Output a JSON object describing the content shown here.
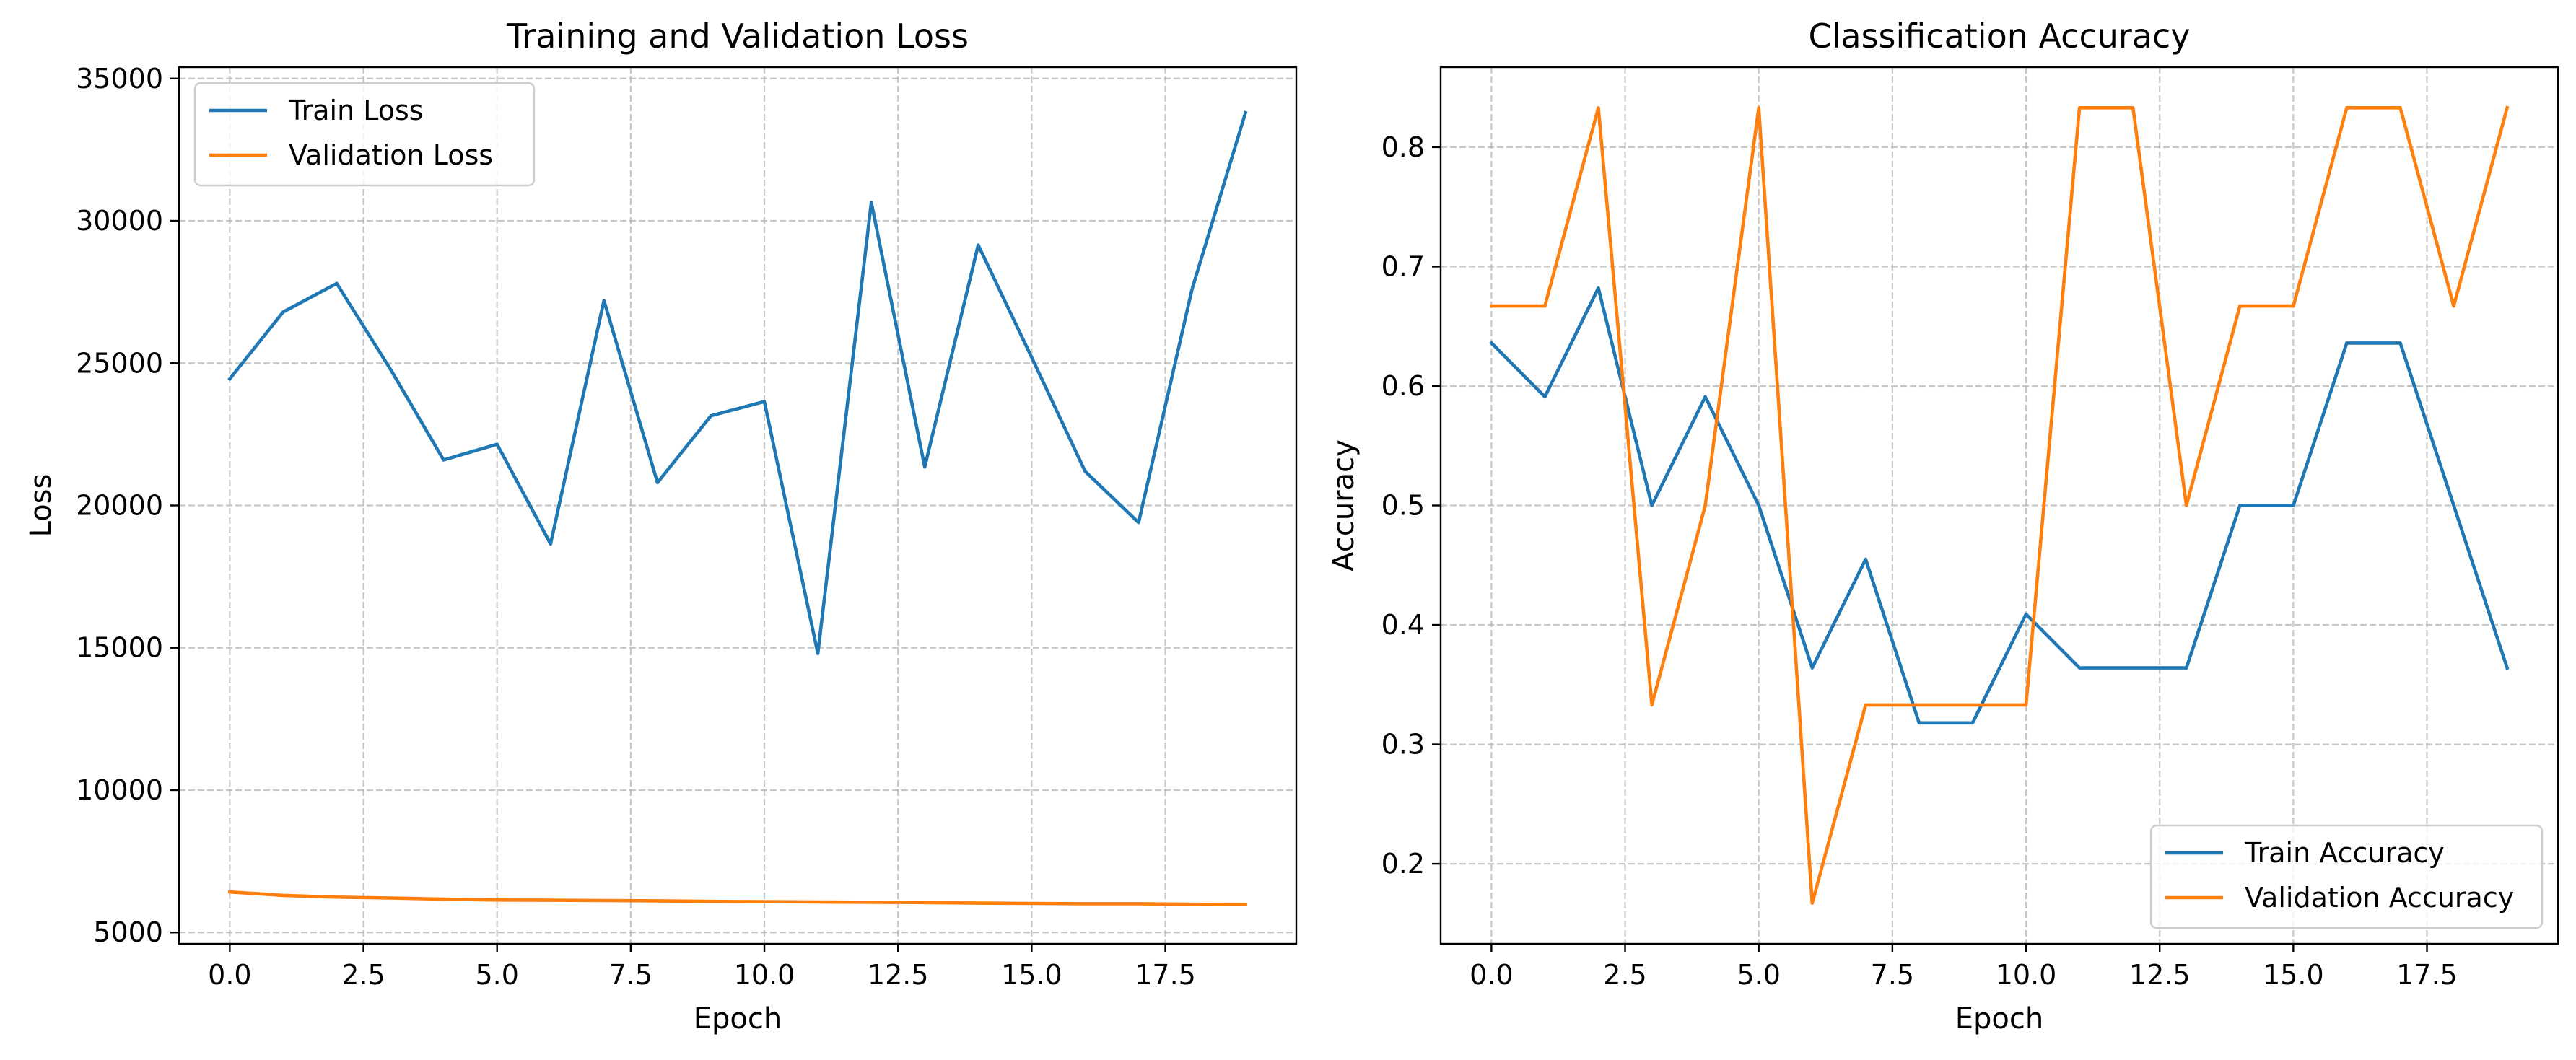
{
  "chart_data": [
    {
      "type": "line",
      "title": "Training and Validation Loss",
      "xlabel": "Epoch",
      "ylabel": "Loss",
      "xlim": [
        -0.95,
        19.95
      ],
      "ylim": [
        4600,
        35400
      ],
      "xticks": [
        0.0,
        2.5,
        5.0,
        7.5,
        10.0,
        12.5,
        15.0,
        17.5
      ],
      "xtick_labels": [
        "0.0",
        "2.5",
        "5.0",
        "7.5",
        "10.0",
        "12.5",
        "15.0",
        "17.5"
      ],
      "yticks": [
        5000,
        10000,
        15000,
        20000,
        25000,
        30000,
        35000
      ],
      "ytick_labels": [
        "5000",
        "10000",
        "15000",
        "20000",
        "25000",
        "30000",
        "35000"
      ],
      "grid": true,
      "legend_position": "top-left",
      "x": [
        0,
        1,
        2,
        3,
        4,
        5,
        6,
        7,
        8,
        9,
        10,
        11,
        12,
        13,
        14,
        15,
        16,
        17,
        18,
        19
      ],
      "series": [
        {
          "name": "Train Loss",
          "color": "#1f77b4",
          "values": [
            24450,
            26800,
            27800,
            24800,
            21600,
            22150,
            18650,
            27200,
            20800,
            23150,
            23650,
            14800,
            30650,
            21350,
            29150,
            25200,
            21200,
            19400,
            27600,
            33800
          ]
        },
        {
          "name": "Validation Loss",
          "color": "#ff7f0e",
          "values": [
            6420,
            6300,
            6240,
            6210,
            6170,
            6140,
            6130,
            6120,
            6110,
            6090,
            6080,
            6070,
            6060,
            6050,
            6030,
            6020,
            6010,
            6010,
            5990,
            5980
          ]
        }
      ]
    },
    {
      "type": "line",
      "title": "Classification Accuracy",
      "xlabel": "Epoch",
      "ylabel": "Accuracy",
      "xlim": [
        -0.95,
        19.95
      ],
      "ylim": [
        0.133,
        0.867
      ],
      "xticks": [
        0.0,
        2.5,
        5.0,
        7.5,
        10.0,
        12.5,
        15.0,
        17.5
      ],
      "xtick_labels": [
        "0.0",
        "2.5",
        "5.0",
        "7.5",
        "10.0",
        "12.5",
        "15.0",
        "17.5"
      ],
      "yticks": [
        0.2,
        0.3,
        0.4,
        0.5,
        0.6,
        0.7,
        0.8
      ],
      "ytick_labels": [
        "0.2",
        "0.3",
        "0.4",
        "0.5",
        "0.6",
        "0.7",
        "0.8"
      ],
      "grid": true,
      "legend_position": "bottom-right",
      "x": [
        0,
        1,
        2,
        3,
        4,
        5,
        6,
        7,
        8,
        9,
        10,
        11,
        12,
        13,
        14,
        15,
        16,
        17,
        18,
        19
      ],
      "series": [
        {
          "name": "Train Accuracy",
          "color": "#1f77b4",
          "values": [
            0.636,
            0.591,
            0.682,
            0.5,
            0.591,
            0.5,
            0.364,
            0.455,
            0.318,
            0.318,
            0.409,
            0.364,
            0.364,
            0.364,
            0.5,
            0.5,
            0.636,
            0.636,
            0.5,
            0.364
          ]
        },
        {
          "name": "Validation Accuracy",
          "color": "#ff7f0e",
          "values": [
            0.667,
            0.667,
            0.833,
            0.333,
            0.5,
            0.833,
            0.167,
            0.333,
            0.333,
            0.333,
            0.333,
            0.833,
            0.833,
            0.5,
            0.667,
            0.667,
            0.833,
            0.833,
            0.667,
            0.833
          ]
        }
      ]
    }
  ]
}
